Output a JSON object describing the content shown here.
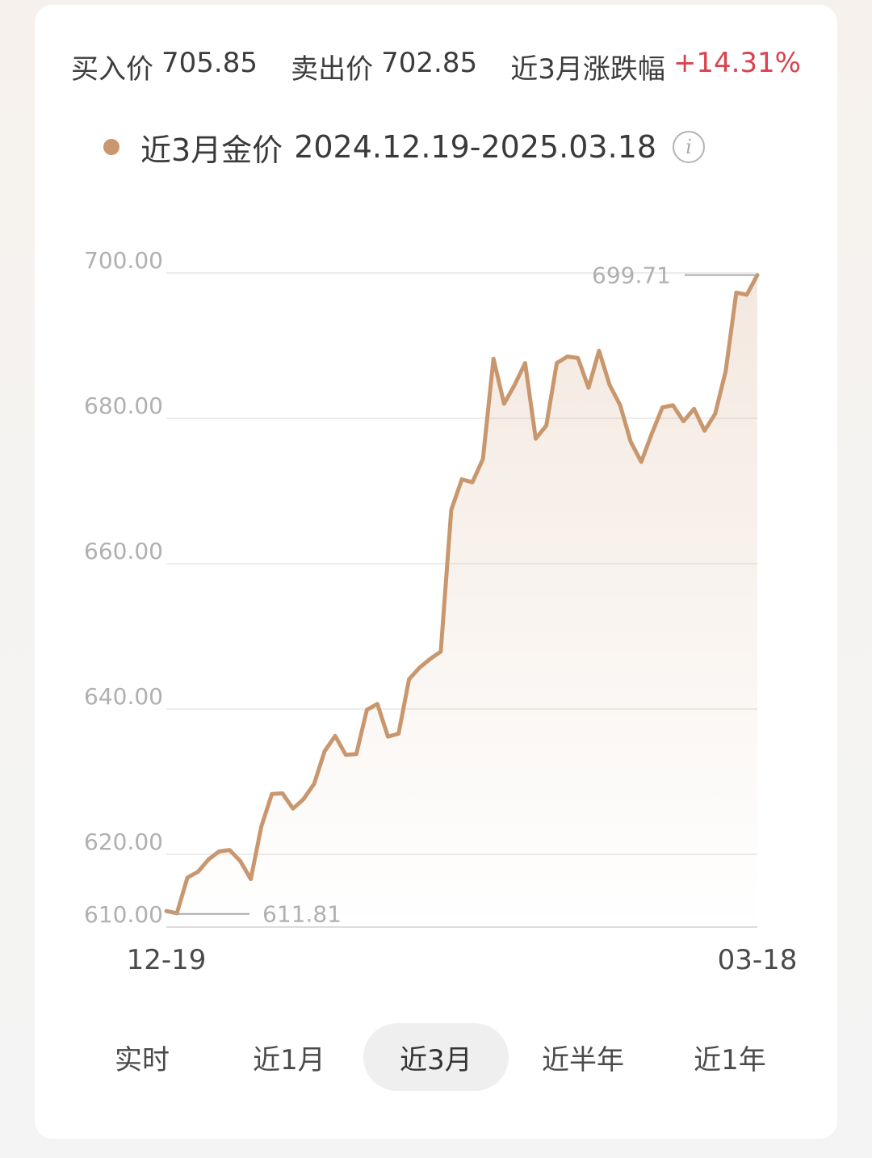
{
  "stats": [
    {
      "label": "买入价",
      "value": "705.85"
    },
    {
      "label": "卖出价",
      "value": "702.85"
    },
    {
      "label": "近3月涨跌幅",
      "value": "+14.31%"
    }
  ],
  "legend": {
    "title": "近3月金价",
    "range": "2024.12.19-2025.03.18",
    "info_icon": "i"
  },
  "colors": {
    "line": "#c9976e",
    "up": "#d8434f",
    "grid": "#e6e6e6",
    "axis_text": "#b0b0b0"
  },
  "chart_data": {
    "type": "area",
    "y_ticks": [
      "700.00",
      "680.00",
      "660.00",
      "640.00",
      "620.00",
      "610.00"
    ],
    "y_tick_values": [
      700,
      680,
      660,
      640,
      620,
      610
    ],
    "ylim": [
      610,
      700
    ],
    "x_labels": [
      "12-19",
      "03-18"
    ],
    "max_label": "699.71",
    "min_label": "611.81",
    "series": [
      {
        "values": [
          612.2,
          611.9,
          616.8,
          617.6,
          619.3,
          620.4,
          620.6,
          619.1,
          616.6,
          623.8,
          628.3,
          628.4,
          626.3,
          627.6,
          629.7,
          634.2,
          636.3,
          633.7,
          633.8,
          639.9,
          640.7,
          636.2,
          636.6,
          644.1,
          645.7,
          646.9,
          647.9,
          667.4,
          671.6,
          671.2,
          674.4,
          688.2,
          682.0,
          684.6,
          687.6,
          677.2,
          679.0,
          687.6,
          688.5,
          688.3,
          684.2,
          689.3,
          684.6,
          681.8,
          676.8,
          674.0,
          677.9,
          681.5,
          681.8,
          679.6,
          681.3,
          678.3,
          680.6,
          686.5,
          697.3,
          697.0,
          699.71
        ]
      }
    ]
  },
  "tabs": [
    {
      "label": "实时"
    },
    {
      "label": "近1月"
    },
    {
      "label": "近3月",
      "active": true
    },
    {
      "label": "近半年"
    },
    {
      "label": "近1年"
    }
  ]
}
